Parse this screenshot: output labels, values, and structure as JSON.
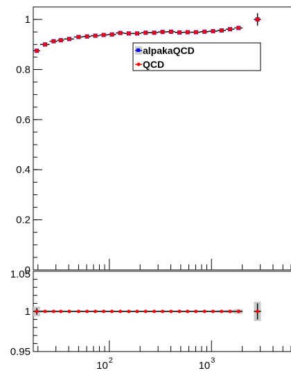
{
  "chart_data": [
    {
      "type": "line",
      "panel": "main",
      "xscale": "log",
      "xlim": [
        18,
        6000
      ],
      "ylim": [
        0,
        1.05
      ],
      "xlabel": "",
      "ylabel": "",
      "grid": false,
      "legend_position": "top-center",
      "x_tick_labels": [
        {
          "value": 100,
          "base": "10",
          "exp": "2"
        },
        {
          "value": 1000,
          "base": "10",
          "exp": "3"
        }
      ],
      "y_ticks": [
        {
          "value": 0,
          "label": "0"
        },
        {
          "value": 0.2,
          "label": "0.2"
        },
        {
          "value": 0.4,
          "label": "0.4"
        },
        {
          "value": 0.6,
          "label": "0.6"
        },
        {
          "value": 0.8,
          "label": "0.8"
        },
        {
          "value": 1,
          "label": "1"
        }
      ],
      "x_bins": [
        [
          18,
          21
        ],
        [
          21,
          26
        ],
        [
          26,
          31
        ],
        [
          31,
          36
        ],
        [
          36,
          45
        ],
        [
          45,
          55
        ],
        [
          55,
          66
        ],
        [
          66,
          80
        ],
        [
          80,
          96
        ],
        [
          96,
          116
        ],
        [
          116,
          140
        ],
        [
          140,
          170
        ],
        [
          170,
          205
        ],
        [
          205,
          250
        ],
        [
          250,
          300
        ],
        [
          300,
          365
        ],
        [
          365,
          440
        ],
        [
          440,
          530
        ],
        [
          530,
          640
        ],
        [
          640,
          775
        ],
        [
          775,
          940
        ],
        [
          940,
          1140
        ],
        [
          1140,
          1380
        ],
        [
          1380,
          1670
        ],
        [
          1670,
          2010
        ],
        [
          2600,
          3050
        ]
      ],
      "x": [
        19.5,
        23.5,
        28.5,
        33.5,
        40.5,
        50,
        60.5,
        73,
        88,
        106,
        128,
        155,
        187,
        227,
        275,
        332,
        402,
        486,
        584,
        704,
        855,
        1035,
        1255,
        1520,
        1840,
        2820
      ],
      "series": [
        {
          "name": "alpakaQCD",
          "color": "#0000ff",
          "values": [
            0.875,
            0.9,
            0.913,
            0.917,
            0.922,
            0.93,
            0.932,
            0.935,
            0.938,
            0.94,
            0.946,
            0.944,
            0.944,
            0.947,
            0.947,
            0.95,
            0.951,
            0.948,
            0.949,
            0.949,
            0.951,
            0.953,
            0.956,
            0.961,
            0.966,
            1.0
          ]
        },
        {
          "name": "QCD",
          "color": "#ff0000",
          "values": [
            0.875,
            0.9,
            0.913,
            0.917,
            0.922,
            0.93,
            0.932,
            0.935,
            0.938,
            0.94,
            0.946,
            0.944,
            0.944,
            0.947,
            0.947,
            0.95,
            0.951,
            0.948,
            0.949,
            0.949,
            0.951,
            0.953,
            0.956,
            0.961,
            0.966,
            1.0
          ]
        }
      ]
    },
    {
      "type": "scatter",
      "panel": "ratio",
      "xscale": "log",
      "xlim": [
        18,
        6000
      ],
      "ylim": [
        0.95,
        1.05
      ],
      "xlabel": "",
      "ylabel": "",
      "grid": false,
      "y_ticks": [
        {
          "value": 0.95,
          "label": "0.95"
        },
        {
          "value": 1,
          "label": "1"
        },
        {
          "value": 1.05,
          "label": "1.05"
        }
      ],
      "x": [
        19.5,
        23.5,
        28.5,
        33.5,
        40.5,
        50,
        60.5,
        73,
        88,
        106,
        128,
        155,
        187,
        227,
        275,
        332,
        402,
        486,
        584,
        704,
        855,
        1035,
        1255,
        1520,
        1840,
        2820
      ],
      "values": [
        1,
        1,
        1,
        1,
        1,
        1,
        1,
        1,
        1,
        1,
        1,
        1,
        1,
        1,
        1,
        1,
        1,
        1,
        1,
        1,
        1,
        1,
        1,
        1,
        1,
        1
      ],
      "error_band": [
        0.006,
        0.0015,
        0.0012,
        0.0012,
        0.001,
        0.001,
        0.001,
        0.001,
        0.001,
        0.001,
        0.001,
        0.001,
        0.001,
        0.001,
        0.001,
        0.001,
        0.001,
        0.001,
        0.001,
        0.001,
        0.001,
        0.001,
        0.0015,
        0.002,
        0.003,
        0.012
      ],
      "error_bar": [
        0.004,
        0.001,
        0.001,
        0.001,
        0.001,
        0.001,
        0.001,
        0.001,
        0.001,
        0.001,
        0.001,
        0.001,
        0.001,
        0.001,
        0.001,
        0.001,
        0.001,
        0.001,
        0.001,
        0.001,
        0.001,
        0.001,
        0.001,
        0.0015,
        0.002,
        0.01
      ],
      "band_color": "#cccccc",
      "line_color": "#000000",
      "marker_color": "#ff0000"
    }
  ]
}
